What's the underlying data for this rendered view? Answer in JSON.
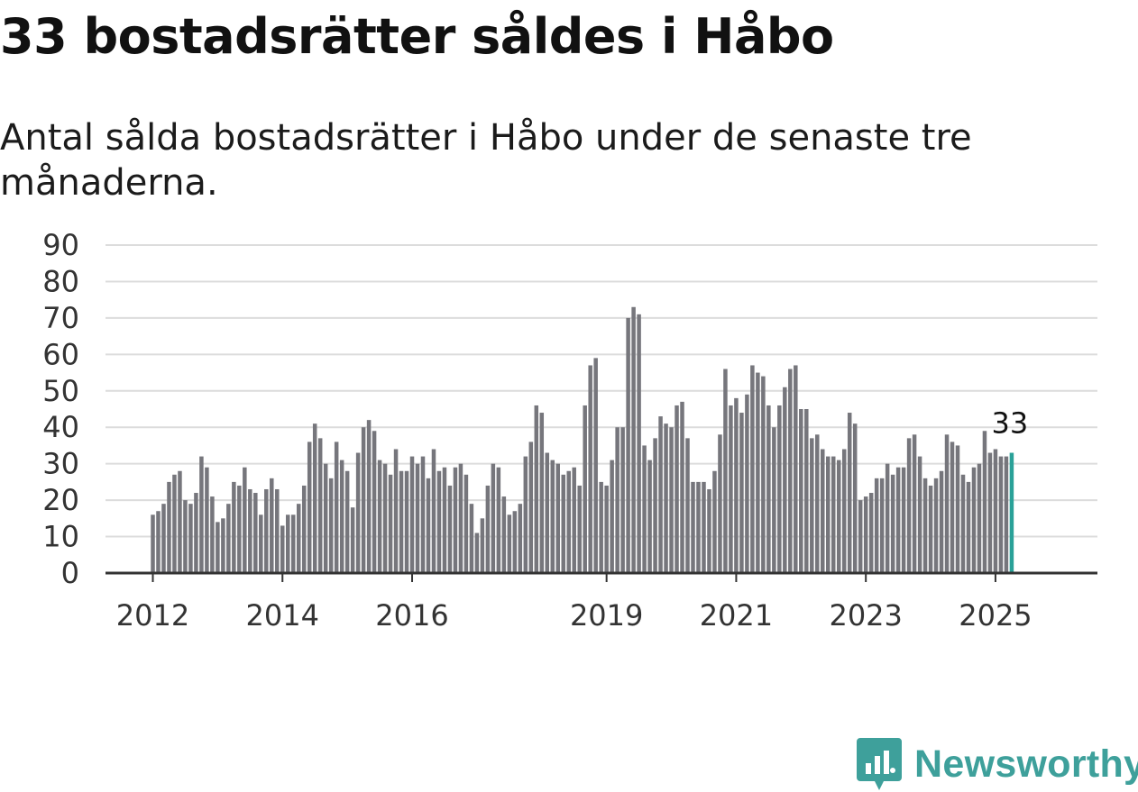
{
  "header": {
    "title": "33 bostadsrätter såldes i Håbo",
    "subtitle": "Antal sålda bostadsrätter i Håbo under de senaste tre månaderna."
  },
  "brand": {
    "name": "Newsworthy",
    "icon": "newsworthy-logo-icon",
    "color": "#3ea09b"
  },
  "chart_data": {
    "type": "bar",
    "title": "33 bostadsrätter såldes i Håbo",
    "subtitle": "Antal sålda bostadsrätter i Håbo under de senaste tre månaderna.",
    "xlabel": "",
    "ylabel": "",
    "ylim": [
      0,
      90
    ],
    "yticks": [
      0,
      10,
      20,
      30,
      40,
      50,
      60,
      70,
      80,
      90
    ],
    "grid": true,
    "legend": "none",
    "start_month": "2012-01",
    "x_ticks": [
      {
        "label": "2012",
        "month": "2012-01"
      },
      {
        "label": "2014",
        "month": "2014-01"
      },
      {
        "label": "2016",
        "month": "2016-01"
      },
      {
        "label": "2019",
        "month": "2019-01"
      },
      {
        "label": "2021",
        "month": "2021-01"
      },
      {
        "label": "2023",
        "month": "2023-01"
      },
      {
        "label": "2025",
        "month": "2025-01"
      }
    ],
    "colors": {
      "bar": "#76767c",
      "highlight": "#2aa198",
      "grid": "#dcdcdc",
      "axis": "#333333"
    },
    "values": [
      16,
      17,
      19,
      25,
      27,
      28,
      20,
      19,
      22,
      32,
      29,
      21,
      14,
      15,
      19,
      25,
      24,
      29,
      23,
      22,
      16,
      23,
      26,
      23,
      13,
      16,
      16,
      19,
      24,
      36,
      41,
      37,
      30,
      26,
      36,
      31,
      28,
      18,
      33,
      40,
      42,
      39,
      31,
      30,
      27,
      34,
      28,
      28,
      32,
      30,
      32,
      26,
      34,
      28,
      29,
      24,
      29,
      30,
      27,
      19,
      11,
      15,
      24,
      30,
      29,
      21,
      16,
      17,
      19,
      32,
      36,
      46,
      44,
      33,
      31,
      30,
      27,
      28,
      29,
      24,
      46,
      57,
      59,
      25,
      24,
      31,
      40,
      40,
      70,
      73,
      71,
      35,
      31,
      37,
      43,
      41,
      40,
      46,
      47,
      37,
      25,
      25,
      25,
      23,
      28,
      38,
      56,
      46,
      48,
      44,
      49,
      57,
      55,
      54,
      46,
      40,
      46,
      51,
      56,
      57,
      45,
      45,
      37,
      38,
      34,
      32,
      32,
      31,
      34,
      44,
      41,
      20,
      21,
      22,
      26,
      26,
      30,
      27,
      29,
      29,
      37,
      38,
      32,
      26,
      24,
      26,
      28,
      38,
      36,
      35,
      27,
      25,
      29,
      30,
      39,
      33,
      34,
      32,
      32,
      33
    ],
    "highlight_last": {
      "value": 33,
      "label": "33"
    }
  }
}
